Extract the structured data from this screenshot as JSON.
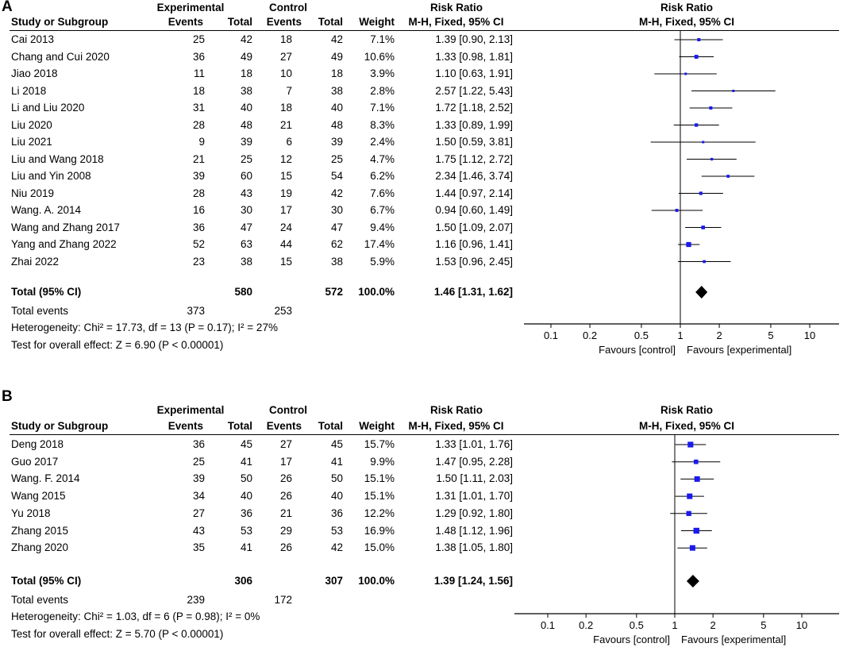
{
  "chart_data": [
    {
      "type": "forest",
      "panel_label": "A",
      "headers": {
        "group1": "Experimental",
        "group2": "Control",
        "rr": "Risk Ratio",
        "rr_plot": "Risk Ratio",
        "study": "Study or Subgroup",
        "events1": "Events",
        "total1": "Total",
        "events2": "Events",
        "total2": "Total",
        "weight": "Weight",
        "method": "M-H, Fixed, 95% CI",
        "method_plot": "M-H, Fixed, 95% CI"
      },
      "studies": [
        {
          "name": "Cai 2013",
          "e1": "25",
          "t1": "42",
          "e2": "18",
          "t2": "42",
          "weight": "7.1%",
          "ci_text": "1.39 [0.90, 2.13]",
          "rr": 1.39,
          "lo": 0.9,
          "hi": 2.13,
          "w": 7.1
        },
        {
          "name": "Chang and Cui 2020",
          "e1": "36",
          "t1": "49",
          "e2": "27",
          "t2": "49",
          "weight": "10.6%",
          "ci_text": "1.33 [0.98, 1.81]",
          "rr": 1.33,
          "lo": 0.98,
          "hi": 1.81,
          "w": 10.6
        },
        {
          "name": "Jiao 2018",
          "e1": "11",
          "t1": "18",
          "e2": "10",
          "t2": "18",
          "weight": "3.9%",
          "ci_text": "1.10 [0.63, 1.91]",
          "rr": 1.1,
          "lo": 0.63,
          "hi": 1.91,
          "w": 3.9
        },
        {
          "name": "Li 2018",
          "e1": "18",
          "t1": "38",
          "e2": "7",
          "t2": "38",
          "weight": "2.8%",
          "ci_text": "2.57 [1.22, 5.43]",
          "rr": 2.57,
          "lo": 1.22,
          "hi": 5.43,
          "w": 2.8
        },
        {
          "name": "Li and Liu 2020",
          "e1": "31",
          "t1": "40",
          "e2": "18",
          "t2": "40",
          "weight": "7.1%",
          "ci_text": "1.72 [1.18, 2.52]",
          "rr": 1.72,
          "lo": 1.18,
          "hi": 2.52,
          "w": 7.1
        },
        {
          "name": "Liu 2020",
          "e1": "28",
          "t1": "48",
          "e2": "21",
          "t2": "48",
          "weight": "8.3%",
          "ci_text": "1.33 [0.89, 1.99]",
          "rr": 1.33,
          "lo": 0.89,
          "hi": 1.99,
          "w": 8.3
        },
        {
          "name": "Liu 2021",
          "e1": "9",
          "t1": "39",
          "e2": "6",
          "t2": "39",
          "weight": "2.4%",
          "ci_text": "1.50 [0.59, 3.81]",
          "rr": 1.5,
          "lo": 0.59,
          "hi": 3.81,
          "w": 2.4
        },
        {
          "name": "Liu and Wang 2018",
          "e1": "21",
          "t1": "25",
          "e2": "12",
          "t2": "25",
          "weight": "4.7%",
          "ci_text": "1.75 [1.12, 2.72]",
          "rr": 1.75,
          "lo": 1.12,
          "hi": 2.72,
          "w": 4.7
        },
        {
          "name": "Liu and Yin 2008",
          "e1": "39",
          "t1": "60",
          "e2": "15",
          "t2": "54",
          "weight": "6.2%",
          "ci_text": "2.34 [1.46, 3.74]",
          "rr": 2.34,
          "lo": 1.46,
          "hi": 3.74,
          "w": 6.2
        },
        {
          "name": "Niu 2019",
          "e1": "28",
          "t1": "43",
          "e2": "19",
          "t2": "42",
          "weight": "7.6%",
          "ci_text": "1.44 [0.97, 2.14]",
          "rr": 1.44,
          "lo": 0.97,
          "hi": 2.14,
          "w": 7.6
        },
        {
          "name": "Wang. A. 2014",
          "e1": "16",
          "t1": "30",
          "e2": "17",
          "t2": "30",
          "weight": "6.7%",
          "ci_text": "0.94 [0.60, 1.49]",
          "rr": 0.94,
          "lo": 0.6,
          "hi": 1.49,
          "w": 6.7
        },
        {
          "name": "Wang and Zhang 2017",
          "e1": "36",
          "t1": "47",
          "e2": "24",
          "t2": "47",
          "weight": "9.4%",
          "ci_text": "1.50 [1.09, 2.07]",
          "rr": 1.5,
          "lo": 1.09,
          "hi": 2.07,
          "w": 9.4
        },
        {
          "name": "Yang and Zhang 2022",
          "e1": "52",
          "t1": "63",
          "e2": "44",
          "t2": "62",
          "weight": "17.4%",
          "ci_text": "1.16 [0.96, 1.41]",
          "rr": 1.16,
          "lo": 0.96,
          "hi": 1.41,
          "w": 17.4
        },
        {
          "name": "Zhai 2022",
          "e1": "23",
          "t1": "38",
          "e2": "15",
          "t2": "38",
          "weight": "5.9%",
          "ci_text": "1.53 [0.96, 2.45]",
          "rr": 1.53,
          "lo": 0.96,
          "hi": 2.45,
          "w": 5.9
        }
      ],
      "total": {
        "name": "Total (95% CI)",
        "t1": "580",
        "t2": "572",
        "weight": "100.0%",
        "ci_text": "1.46 [1.31, 1.62]",
        "rr": 1.46,
        "lo": 1.31,
        "hi": 1.62
      },
      "total_events": {
        "label": "Total events",
        "e1": "373",
        "e2": "253"
      },
      "heterogeneity": "Heterogeneity: Chi² = 17.73, df = 13 (P = 0.17); I² = 27%",
      "overall_effect": "Test for overall effect: Z = 6.90 (P < 0.00001)",
      "axis": {
        "scale": "log",
        "ticks": [
          0.1,
          0.2,
          0.5,
          1,
          2,
          5,
          10
        ],
        "tick_labels": [
          "0.1",
          "0.2",
          "0.5",
          "1",
          "2",
          "5",
          "10"
        ],
        "range": [
          0.05,
          20
        ]
      },
      "favours_left": "Favours [control]",
      "favours_right": "Favours [experimental]",
      "colors": {
        "marker": "#1a1aee",
        "line": "#000000"
      }
    },
    {
      "type": "forest",
      "panel_label": "B",
      "headers": {
        "group1": "Experimental",
        "group2": "Control",
        "rr": "Risk Ratio",
        "rr_plot": "Risk Ratio",
        "study": "Study or Subgroup",
        "events1": "Events",
        "total1": "Total",
        "events2": "Events",
        "total2": "Total",
        "weight": "Weight",
        "method": "M-H, Fixed, 95% CI",
        "method_plot": "M-H, Fixed, 95% CI"
      },
      "studies": [
        {
          "name": "Deng 2018",
          "e1": "36",
          "t1": "45",
          "e2": "27",
          "t2": "45",
          "weight": "15.7%",
          "ci_text": "1.33 [1.01, 1.76]",
          "rr": 1.33,
          "lo": 1.01,
          "hi": 1.76,
          "w": 15.7
        },
        {
          "name": "Guo 2017",
          "e1": "25",
          "t1": "41",
          "e2": "17",
          "t2": "41",
          "weight": "9.9%",
          "ci_text": "1.47 [0.95, 2.28]",
          "rr": 1.47,
          "lo": 0.95,
          "hi": 2.28,
          "w": 9.9
        },
        {
          "name": "Wang. F. 2014",
          "e1": "39",
          "t1": "50",
          "e2": "26",
          "t2": "50",
          "weight": "15.1%",
          "ci_text": "1.50 [1.11, 2.03]",
          "rr": 1.5,
          "lo": 1.11,
          "hi": 2.03,
          "w": 15.1
        },
        {
          "name": "Wang 2015",
          "e1": "34",
          "t1": "40",
          "e2": "26",
          "t2": "40",
          "weight": "15.1%",
          "ci_text": "1.31 [1.01, 1.70]",
          "rr": 1.31,
          "lo": 1.01,
          "hi": 1.7,
          "w": 15.1
        },
        {
          "name": "Yu 2018",
          "e1": "27",
          "t1": "36",
          "e2": "21",
          "t2": "36",
          "weight": "12.2%",
          "ci_text": "1.29 [0.92, 1.80]",
          "rr": 1.29,
          "lo": 0.92,
          "hi": 1.8,
          "w": 12.2
        },
        {
          "name": "Zhang 2015",
          "e1": "43",
          "t1": "53",
          "e2": "29",
          "t2": "53",
          "weight": "16.9%",
          "ci_text": "1.48 [1.12, 1.96]",
          "rr": 1.48,
          "lo": 1.12,
          "hi": 1.96,
          "w": 16.9
        },
        {
          "name": "Zhang 2020",
          "e1": "35",
          "t1": "41",
          "e2": "26",
          "t2": "42",
          "weight": "15.0%",
          "ci_text": "1.38 [1.05, 1.80]",
          "rr": 1.38,
          "lo": 1.05,
          "hi": 1.8,
          "w": 15.0
        }
      ],
      "total": {
        "name": "Total (95% CI)",
        "t1": "306",
        "t2": "307",
        "weight": "100.0%",
        "ci_text": "1.39 [1.24, 1.56]",
        "rr": 1.39,
        "lo": 1.24,
        "hi": 1.56
      },
      "total_events": {
        "label": "Total events",
        "e1": "239",
        "e2": "172"
      },
      "heterogeneity": "Heterogeneity: Chi² = 1.03, df = 6 (P = 0.98); I² = 0%",
      "overall_effect": "Test for overall effect: Z = 5.70 (P < 0.00001)",
      "axis": {
        "scale": "log",
        "ticks": [
          0.1,
          0.2,
          0.5,
          1,
          2,
          5,
          10
        ],
        "tick_labels": [
          "0.1",
          "0.2",
          "0.5",
          "1",
          "2",
          "5",
          "10"
        ],
        "range": [
          0.05,
          20
        ]
      },
      "favours_left": "Favours [control]",
      "favours_right": "Favours [experimental]",
      "colors": {
        "marker": "#1a1aee",
        "line": "#000000"
      }
    }
  ]
}
